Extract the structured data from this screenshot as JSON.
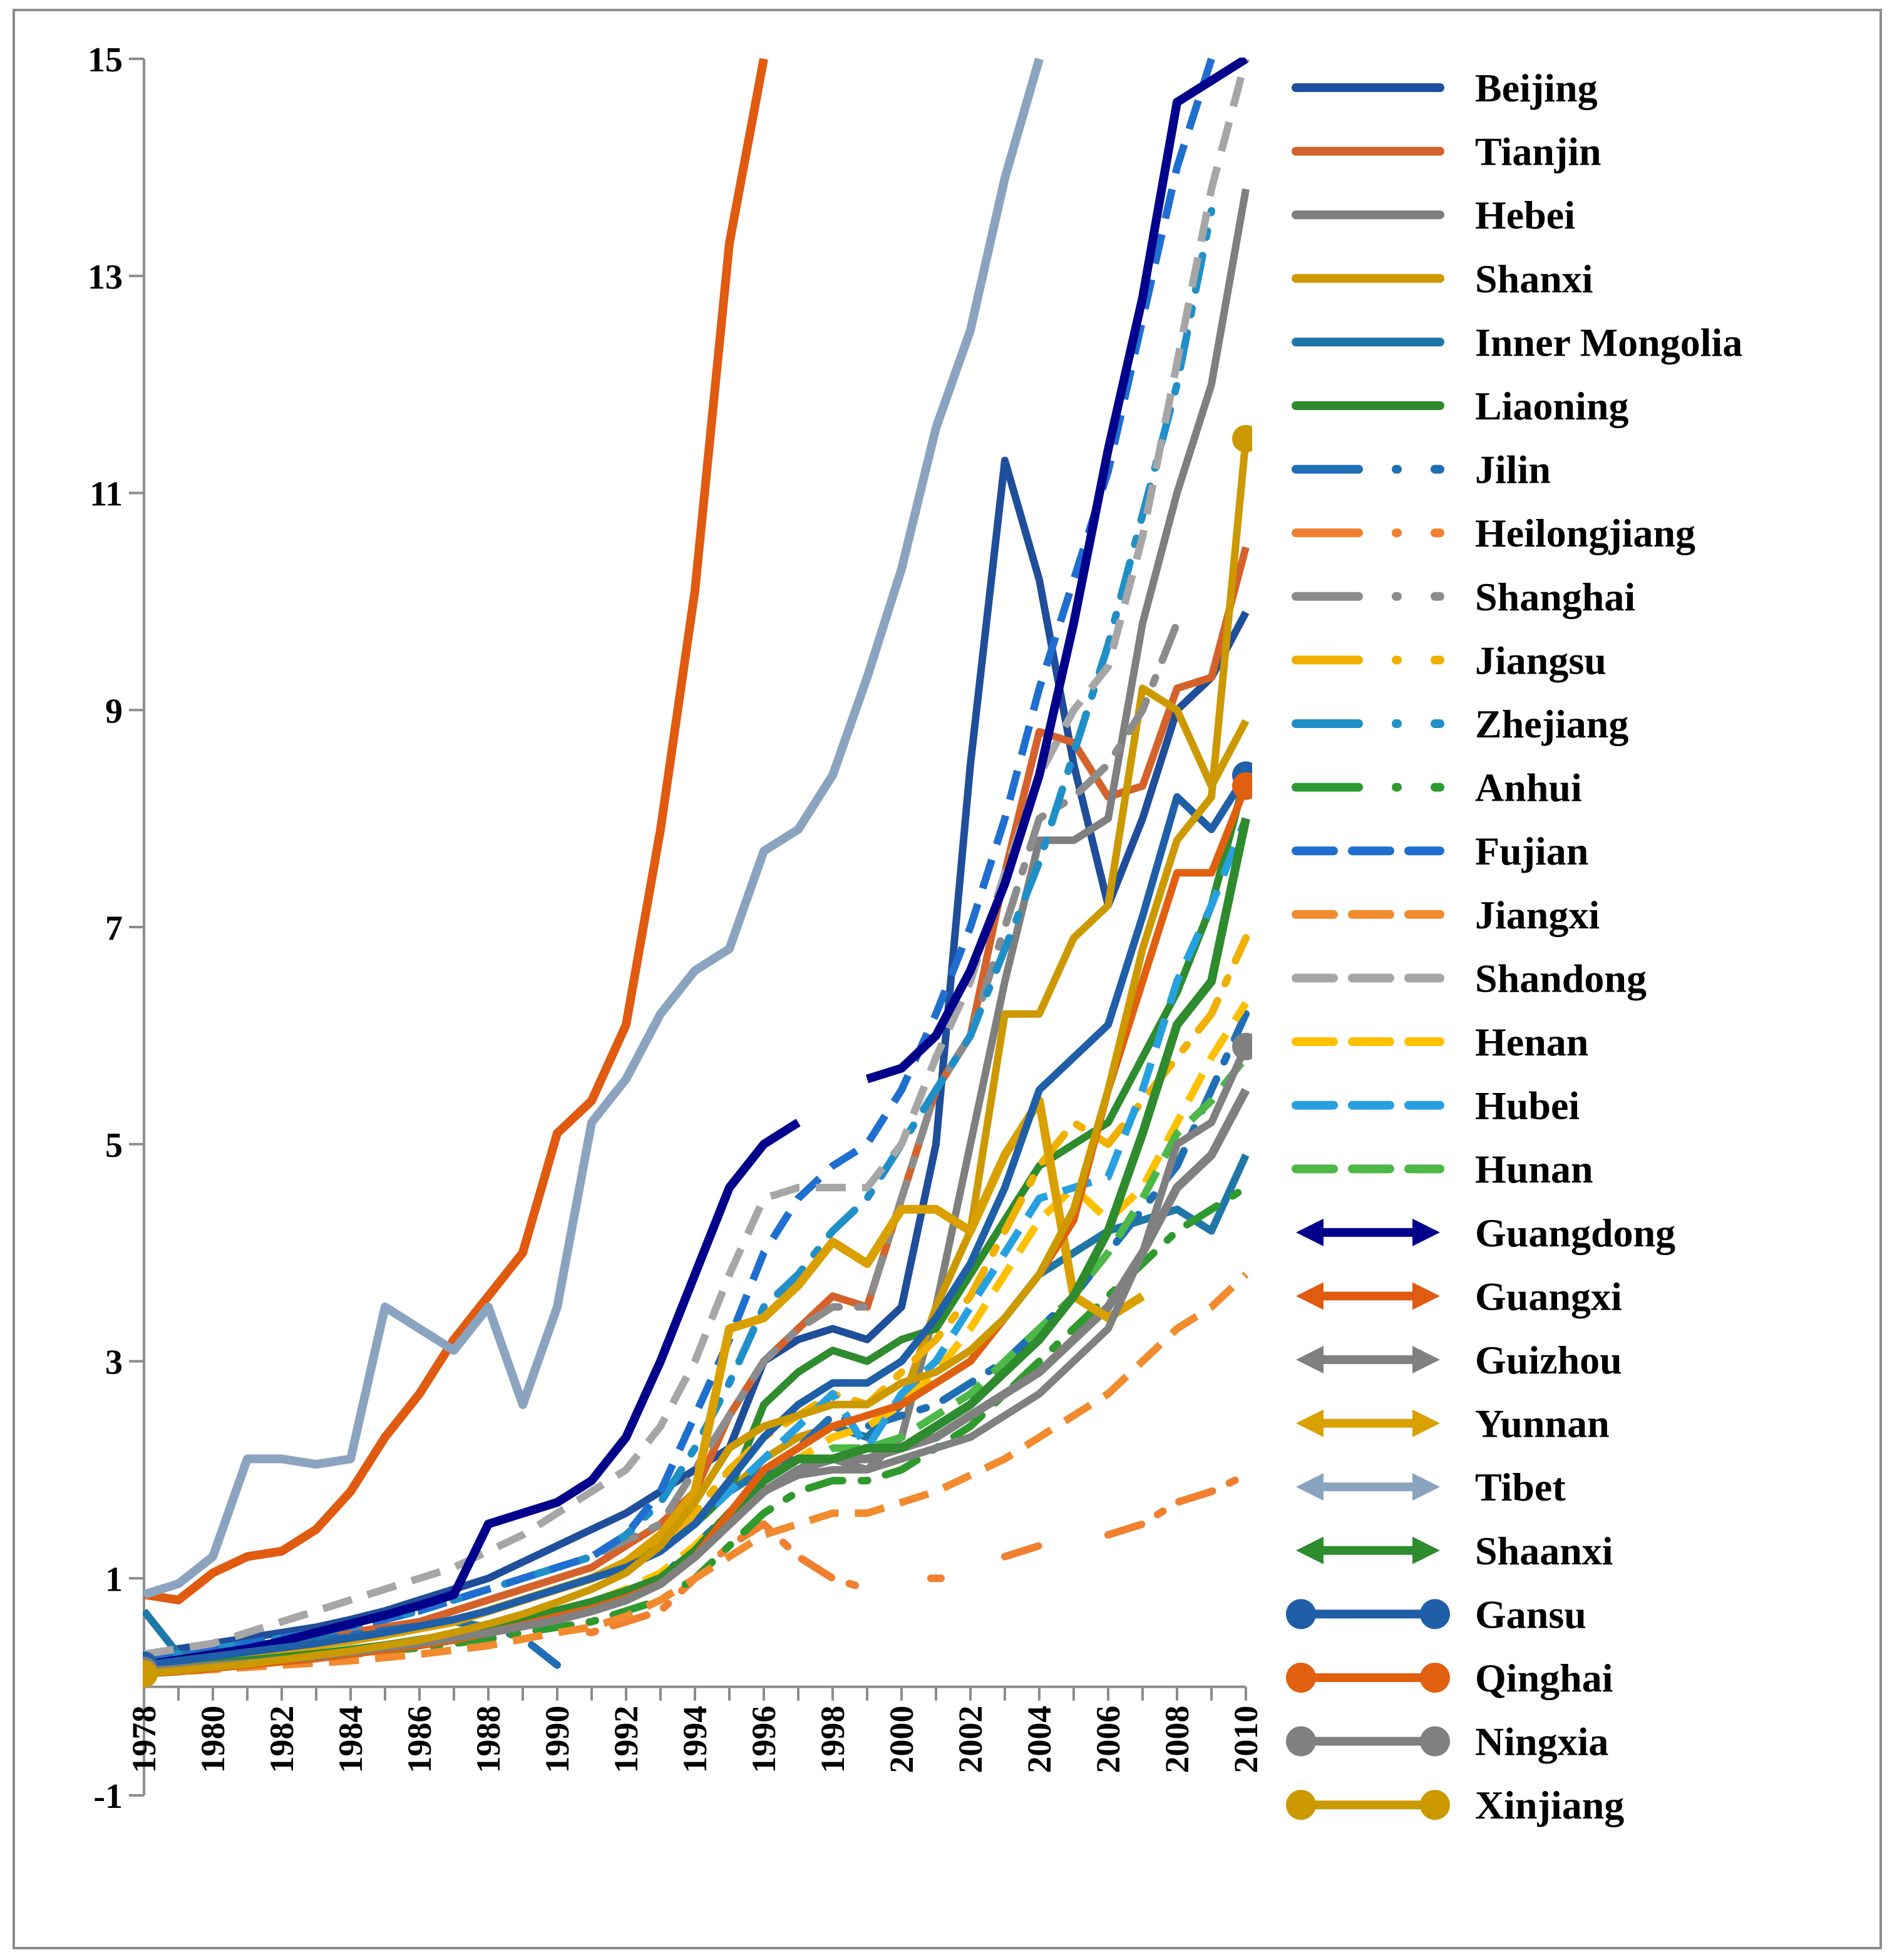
{
  "chart_data": {
    "type": "line",
    "title": "",
    "xlabel": "",
    "ylabel": "",
    "ylim": [
      -1,
      15
    ],
    "yticks": [
      -1,
      1,
      3,
      5,
      7,
      9,
      11,
      13,
      15
    ],
    "xlim": [
      1978,
      2010
    ],
    "xticks": [
      1978,
      1980,
      1982,
      1984,
      1986,
      1988,
      1990,
      1992,
      1994,
      1996,
      1998,
      2000,
      2002,
      2004,
      2006,
      2008,
      2010
    ],
    "grid": false,
    "legend_position": "right",
    "x": [
      1978,
      1979,
      1980,
      1981,
      1982,
      1983,
      1984,
      1985,
      1986,
      1987,
      1988,
      1989,
      1990,
      1991,
      1992,
      1993,
      1994,
      1995,
      1996,
      1997,
      1998,
      1999,
      2000,
      2001,
      2002,
      2003,
      2004,
      2005,
      2006,
      2007,
      2008,
      2009,
      2010
    ],
    "series": [
      {
        "name": "Beijing",
        "color": "#1f4e9a",
        "style": "solid",
        "marker": "none",
        "values": [
          0.3,
          0.35,
          0.4,
          0.45,
          0.5,
          0.55,
          0.62,
          0.7,
          0.8,
          0.9,
          1.0,
          1.15,
          1.3,
          1.45,
          1.6,
          1.8,
          2.0,
          2.2,
          3.0,
          3.2,
          3.3,
          3.2,
          3.5,
          5.0,
          8.5,
          11.3,
          10.2,
          8.5,
          7.2,
          8.0,
          9.0,
          9.3,
          9.9
        ]
      },
      {
        "name": "Tianjin",
        "color": "#d4622a",
        "style": "solid",
        "marker": "none",
        "values": [
          0.2,
          0.25,
          0.3,
          0.35,
          0.4,
          0.45,
          0.5,
          0.55,
          0.6,
          0.7,
          0.8,
          0.9,
          1.0,
          1.1,
          1.3,
          1.5,
          1.8,
          2.5,
          3.0,
          3.3,
          3.6,
          3.5,
          4.5,
          5.5,
          6.0,
          7.5,
          8.8,
          8.7,
          8.2,
          8.3,
          9.2,
          9.3,
          10.5
        ]
      },
      {
        "name": "Hebei",
        "color": "#7f7f7f",
        "style": "solid",
        "marker": "none",
        "values": [
          0.2,
          0.24,
          0.28,
          0.32,
          0.36,
          0.4,
          0.45,
          0.5,
          0.55,
          0.6,
          0.7,
          0.8,
          0.9,
          1.0,
          1.1,
          1.3,
          1.5,
          1.8,
          2.0,
          2.1,
          2.1,
          2.0,
          2.3,
          3.5,
          5.0,
          6.5,
          7.8,
          7.8,
          8.0,
          9.8,
          11.0,
          12.0,
          13.8
        ]
      },
      {
        "name": "Shanxi",
        "color": "#cc9900",
        "style": "solid",
        "marker": "none",
        "values": [
          0.18,
          0.22,
          0.26,
          0.3,
          0.34,
          0.38,
          0.42,
          0.48,
          0.54,
          0.6,
          0.7,
          0.8,
          0.9,
          1.0,
          1.1,
          1.3,
          1.5,
          1.8,
          2.1,
          2.3,
          2.4,
          2.3,
          2.6,
          3.5,
          4.2,
          6.2,
          6.2,
          6.9,
          7.2,
          9.2,
          9.0,
          8.3,
          8.9
        ]
      },
      {
        "name": "Inner Mongolia",
        "color": "#1f77a8",
        "style": "solid",
        "marker": "none",
        "values": [
          0.7,
          0.3,
          0.3,
          0.34,
          0.38,
          0.42,
          0.46,
          0.5,
          0.56,
          0.62,
          0.7,
          0.8,
          0.9,
          1.0,
          1.1,
          1.3,
          1.5,
          1.8,
          2.0,
          2.2,
          2.4,
          2.3,
          2.6,
          2.8,
          3.0,
          3.4,
          3.8,
          4.0,
          4.2,
          4.3,
          4.4,
          4.2,
          4.9
        ]
      },
      {
        "name": "Liaoning",
        "color": "#2e8b2e",
        "style": "solid",
        "marker": "none",
        "values": [
          0.2,
          0.24,
          0.28,
          0.32,
          0.36,
          0.4,
          0.45,
          0.5,
          0.55,
          0.6,
          0.7,
          0.8,
          0.9,
          1.0,
          1.1,
          1.3,
          1.5,
          1.8,
          2.6,
          2.9,
          3.1,
          3.0,
          3.2,
          3.3,
          3.8,
          4.3,
          4.8,
          5.0,
          5.2,
          5.8,
          6.4,
          7.2,
          8.4
        ]
      },
      {
        "name": "Jilin",
        "color": "#1f6fb5",
        "style": "dashdot",
        "marker": "none",
        "values": [
          0.25,
          0.28,
          0.32,
          0.36,
          0.4,
          0.44,
          0.48,
          0.52,
          0.56,
          0.6,
          0.55,
          0.45,
          0.2,
          null,
          0.8,
          1.0,
          1.3,
          1.6,
          1.9,
          2.2,
          2.5,
          2.4,
          2.5,
          2.6,
          2.8,
          3.0,
          3.3,
          3.6,
          4.0,
          4.4,
          4.8,
          5.5,
          6.2
        ]
      },
      {
        "name": "Heilongjiang",
        "color": "#f08030",
        "style": "dashdot",
        "marker": "none",
        "values": [
          0.15,
          0.17,
          0.2,
          0.22,
          0.25,
          0.28,
          0.3,
          0.33,
          0.36,
          0.4,
          0.44,
          0.5,
          0.55,
          0.5,
          0.6,
          0.7,
          1.0,
          1.3,
          1.5,
          1.2,
          1.0,
          0.9,
          null,
          1.0,
          null,
          1.2,
          1.3,
          null,
          1.4,
          1.5,
          1.7,
          1.8,
          1.95
        ]
      },
      {
        "name": "Shanghai",
        "color": "#8c8c8c",
        "style": "dashdot",
        "marker": "none",
        "values": [
          0.25,
          0.3,
          0.35,
          0.4,
          0.45,
          0.5,
          0.55,
          0.62,
          0.7,
          0.8,
          0.9,
          1.0,
          1.1,
          1.2,
          1.35,
          1.5,
          2.0,
          2.5,
          3.0,
          3.3,
          3.5,
          3.5,
          4.5,
          5.5,
          6.0,
          7.0,
          8.0,
          8.2,
          8.5,
          9.0,
          9.8,
          null,
          null
        ]
      },
      {
        "name": "Jiangsu",
        "color": "#f0b000",
        "style": "dashdot",
        "marker": "none",
        "values": [
          0.2,
          0.24,
          0.28,
          0.32,
          0.36,
          0.4,
          0.45,
          0.5,
          0.55,
          0.62,
          0.7,
          0.8,
          0.9,
          1.0,
          1.1,
          1.3,
          1.6,
          2.0,
          2.3,
          2.5,
          2.7,
          2.6,
          2.9,
          3.2,
          3.6,
          4.2,
          4.8,
          5.2,
          5.0,
          5.4,
          5.8,
          6.2,
          6.9
        ]
      },
      {
        "name": "Zhejiang",
        "color": "#1f8fc8",
        "style": "dashdot",
        "marker": "none",
        "values": [
          0.25,
          0.3,
          0.35,
          0.4,
          0.45,
          0.5,
          0.56,
          0.62,
          0.7,
          0.8,
          0.9,
          1.0,
          1.1,
          1.2,
          1.4,
          1.7,
          2.2,
          2.8,
          3.5,
          3.8,
          4.2,
          4.5,
          5.0,
          5.5,
          6.0,
          6.8,
          7.6,
          8.6,
          9.6,
          10.8,
          12.0,
          13.6,
          null
        ]
      },
      {
        "name": "Anhui",
        "color": "#2e9a2e",
        "style": "dashdot",
        "marker": "none",
        "values": [
          0.15,
          0.17,
          0.2,
          0.22,
          0.25,
          0.28,
          0.3,
          0.33,
          0.36,
          0.4,
          0.44,
          0.5,
          0.55,
          0.6,
          0.7,
          0.8,
          1.0,
          1.3,
          1.6,
          1.8,
          1.9,
          1.9,
          2.0,
          2.2,
          2.4,
          2.7,
          3.0,
          3.3,
          3.6,
          3.9,
          4.2,
          4.4,
          4.6
        ]
      },
      {
        "name": "Fujian",
        "color": "#1f6fd0",
        "style": "dashed",
        "marker": "none",
        "values": [
          0.25,
          0.3,
          0.35,
          0.4,
          0.45,
          0.5,
          0.56,
          0.62,
          0.7,
          0.8,
          0.9,
          1.0,
          1.1,
          1.2,
          1.4,
          1.8,
          2.5,
          3.2,
          4.0,
          4.5,
          4.8,
          5.0,
          5.5,
          6.2,
          7.0,
          8.0,
          9.2,
          10.2,
          11.2,
          12.6,
          14.0,
          15.0,
          null
        ]
      },
      {
        "name": "Jiangxi",
        "color": "#f28a2e",
        "style": "dashed",
        "marker": "none",
        "values": [
          0.12,
          0.14,
          0.16,
          0.18,
          0.2,
          0.22,
          0.24,
          0.27,
          0.3,
          0.34,
          0.38,
          0.44,
          0.5,
          0.55,
          0.65,
          0.8,
          1.0,
          1.2,
          1.4,
          1.5,
          1.6,
          1.6,
          1.7,
          1.8,
          1.95,
          2.1,
          2.3,
          2.5,
          2.7,
          3.0,
          3.3,
          3.5,
          3.8
        ]
      },
      {
        "name": "Shandong",
        "color": "#a6a6a6",
        "style": "dashed",
        "marker": "none",
        "values": [
          0.3,
          0.35,
          0.4,
          0.5,
          0.6,
          0.7,
          0.8,
          0.9,
          1.0,
          1.1,
          1.25,
          1.4,
          1.6,
          1.8,
          2.0,
          2.4,
          3.0,
          3.8,
          4.5,
          4.6,
          4.6,
          4.6,
          5.0,
          5.8,
          6.5,
          7.5,
          8.4,
          9.0,
          9.4,
          10.6,
          12.2,
          13.8,
          15.0
        ]
      },
      {
        "name": "Henan",
        "color": "#ffc000",
        "style": "dashed",
        "marker": "none",
        "values": [
          0.15,
          0.18,
          0.21,
          0.24,
          0.27,
          0.3,
          0.34,
          0.38,
          0.42,
          0.48,
          0.55,
          0.62,
          0.7,
          0.78,
          0.9,
          1.05,
          1.3,
          1.6,
          1.9,
          2.1,
          2.3,
          2.4,
          2.6,
          2.9,
          3.3,
          3.8,
          4.3,
          4.6,
          4.3,
          4.6,
          5.2,
          5.8,
          6.3
        ]
      },
      {
        "name": "Hubei",
        "color": "#27a0e0",
        "style": "dashed",
        "marker": "none",
        "values": [
          0.2,
          0.24,
          0.28,
          0.32,
          0.36,
          0.4,
          0.45,
          0.5,
          0.56,
          0.62,
          0.7,
          0.8,
          0.9,
          1.0,
          1.1,
          1.25,
          1.5,
          1.8,
          2.1,
          2.4,
          2.7,
          2.2,
          2.7,
          3.0,
          3.5,
          4.0,
          4.5,
          4.6,
          4.7,
          5.5,
          6.5,
          7.2,
          8.0
        ]
      },
      {
        "name": "Hunan",
        "color": "#4cb848",
        "style": "dashed",
        "marker": "none",
        "values": [
          0.15,
          0.18,
          0.21,
          0.24,
          0.27,
          0.3,
          0.34,
          0.38,
          0.42,
          0.48,
          0.55,
          0.62,
          0.7,
          0.75,
          0.85,
          1.0,
          1.2,
          1.5,
          1.8,
          2.0,
          2.2,
          2.2,
          2.3,
          2.5,
          2.7,
          3.0,
          3.3,
          3.6,
          4.0,
          4.5,
          5.1,
          5.4,
          5.8
        ]
      },
      {
        "name": "Guangdong",
        "color": "#00008b",
        "style": "solid",
        "marker": "arrow",
        "values": [
          0.2,
          0.25,
          0.3,
          0.35,
          0.42,
          0.5,
          0.58,
          0.66,
          0.75,
          0.85,
          1.5,
          1.6,
          1.7,
          1.9,
          2.3,
          3.0,
          3.8,
          4.6,
          5.0,
          5.2,
          null,
          5.6,
          5.7,
          6.0,
          6.6,
          7.4,
          8.4,
          9.8,
          11.4,
          12.8,
          14.6,
          14.8,
          15.0
        ]
      },
      {
        "name": "Guangxi",
        "color": "#e05a10",
        "style": "solid",
        "marker": "arrow",
        "values": [
          0.85,
          0.8,
          1.05,
          1.2,
          1.25,
          1.45,
          1.8,
          2.3,
          2.7,
          3.2,
          3.6,
          4.0,
          5.1,
          5.4,
          6.1,
          7.9,
          10.1,
          13.3,
          15.0,
          null,
          null,
          null,
          null,
          null,
          null,
          null,
          null,
          null,
          null,
          null,
          null,
          null,
          null
        ]
      },
      {
        "name": "Guizhou",
        "color": "#808080",
        "style": "solid",
        "marker": "arrow",
        "values": [
          0.15,
          0.17,
          0.2,
          0.22,
          0.25,
          0.28,
          0.31,
          0.35,
          0.4,
          0.45,
          0.5,
          0.56,
          0.62,
          0.7,
          0.8,
          0.95,
          1.2,
          1.5,
          1.8,
          2.0,
          2.1,
          2.1,
          2.2,
          2.3,
          2.5,
          2.7,
          2.9,
          3.2,
          3.5,
          4.0,
          4.6,
          4.9,
          5.5
        ]
      },
      {
        "name": "Yunnan",
        "color": "#d9a000",
        "style": "solid",
        "marker": "arrow",
        "values": [
          0.18,
          0.22,
          0.26,
          0.3,
          0.34,
          0.38,
          0.43,
          0.48,
          0.54,
          0.6,
          0.7,
          0.8,
          0.9,
          1.0,
          1.15,
          1.4,
          1.8,
          3.3,
          3.4,
          3.7,
          4.1,
          3.9,
          4.4,
          4.4,
          4.2,
          4.9,
          5.4,
          3.6,
          3.4,
          3.6,
          null,
          null,
          null
        ]
      },
      {
        "name": "Tibet",
        "color": "#8aa4c0",
        "style": "solid",
        "marker": "arrow",
        "values": [
          0.85,
          0.95,
          1.2,
          2.1,
          2.1,
          2.05,
          2.1,
          3.5,
          3.3,
          3.1,
          3.5,
          2.6,
          3.5,
          5.2,
          5.6,
          6.2,
          6.6,
          6.8,
          7.7,
          7.9,
          8.4,
          9.3,
          10.3,
          11.6,
          12.5,
          13.9,
          15.0,
          null,
          null,
          null,
          null,
          null,
          null
        ]
      },
      {
        "name": "Shaanxi",
        "color": "#2e8b2e",
        "style": "solid",
        "marker": "arrow",
        "values": [
          0.15,
          0.18,
          0.21,
          0.24,
          0.27,
          0.3,
          0.34,
          0.38,
          0.43,
          0.48,
          0.55,
          0.62,
          0.7,
          0.78,
          0.88,
          1.0,
          1.25,
          1.6,
          1.9,
          2.1,
          2.1,
          2.2,
          2.2,
          2.4,
          2.6,
          2.9,
          3.2,
          3.6,
          4.2,
          5.1,
          6.1,
          6.5,
          8.0
        ]
      },
      {
        "name": "Gansu",
        "color": "#1f5fa8",
        "style": "solid",
        "marker": "circle",
        "values": [
          0.2,
          0.24,
          0.28,
          0.32,
          0.36,
          0.4,
          0.45,
          0.5,
          0.56,
          0.62,
          0.7,
          0.8,
          0.9,
          1.0,
          1.1,
          1.25,
          1.5,
          1.9,
          2.3,
          2.6,
          2.8,
          2.8,
          3.0,
          3.4,
          3.9,
          4.6,
          5.5,
          5.8,
          6.1,
          7.1,
          8.2,
          7.9,
          8.4
        ]
      },
      {
        "name": "Qinghai",
        "color": "#e06010",
        "style": "solid",
        "marker": "circle",
        "values": [
          0.12,
          0.14,
          0.17,
          0.2,
          0.23,
          0.26,
          0.3,
          0.34,
          0.38,
          0.43,
          0.5,
          0.57,
          0.65,
          0.72,
          0.82,
          0.95,
          1.2,
          1.6,
          2.0,
          2.2,
          2.4,
          2.5,
          2.6,
          2.8,
          3.0,
          3.4,
          3.8,
          4.3,
          5.5,
          6.5,
          7.5,
          7.5,
          8.3
        ]
      },
      {
        "name": "Ningxia",
        "color": "#808080",
        "style": "solid",
        "marker": "circle",
        "values": [
          0.15,
          0.17,
          0.2,
          0.22,
          0.25,
          0.28,
          0.32,
          0.36,
          0.4,
          0.45,
          0.5,
          0.56,
          0.62,
          0.7,
          0.8,
          0.95,
          1.2,
          1.5,
          1.8,
          1.95,
          2.0,
          2.0,
          2.1,
          2.2,
          2.3,
          2.5,
          2.7,
          3.0,
          3.3,
          4.0,
          5.0,
          5.2,
          5.9
        ]
      },
      {
        "name": "Xinjiang",
        "color": "#cc9900",
        "style": "solid",
        "marker": "circle",
        "values": [
          0.12,
          0.15,
          0.18,
          0.21,
          0.25,
          0.29,
          0.33,
          0.38,
          0.43,
          0.5,
          0.58,
          0.67,
          0.78,
          0.9,
          1.05,
          1.3,
          1.7,
          2.2,
          2.4,
          2.5,
          2.6,
          2.6,
          2.8,
          2.9,
          3.1,
          3.4,
          3.8,
          4.4,
          5.5,
          6.8,
          7.8,
          8.2,
          11.5
        ]
      }
    ]
  }
}
